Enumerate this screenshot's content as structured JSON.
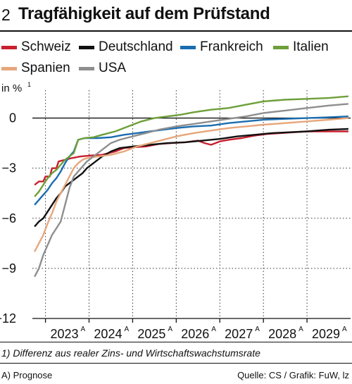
{
  "header": {
    "number": "2",
    "title": "Tragfähigkeit auf dem Prüfstand"
  },
  "chart_data": {
    "type": "line",
    "ylabel": "in %",
    "ylabel_sup": "1",
    "ylim": [
      -12,
      1.5
    ],
    "yticks": [
      0,
      -3,
      -6,
      -9,
      -12
    ],
    "ytick_labels": [
      "0",
      "−3",
      "−6",
      "−9",
      "−12"
    ],
    "xlim": [
      2022.7,
      2030.0
    ],
    "xticks": [
      {
        "label": "2023",
        "sup": "A",
        "pos": 2023.5
      },
      {
        "label": "2024",
        "sup": "A",
        "pos": 2024.5
      },
      {
        "label": "2025",
        "sup": "A",
        "pos": 2025.5
      },
      {
        "label": "2026",
        "sup": "A",
        "pos": 2026.5
      },
      {
        "label": "2027",
        "sup": "A",
        "pos": 2027.5
      },
      {
        "label": "2028",
        "sup": "A",
        "pos": 2028.5
      },
      {
        "label": "2029",
        "sup": "A",
        "pos": 2029.5
      }
    ],
    "year_gridlines": [
      2023,
      2024,
      2025,
      2026,
      2027,
      2028,
      2029
    ],
    "series": [
      {
        "name": "Schweiz",
        "color": "#c8202f",
        "points": [
          [
            2022.75,
            -4.0
          ],
          [
            2022.85,
            -3.8
          ],
          [
            2022.95,
            -3.8
          ],
          [
            2023.0,
            -3.5
          ],
          [
            2023.1,
            -3.5
          ],
          [
            2023.15,
            -3.0
          ],
          [
            2023.25,
            -3.0
          ],
          [
            2023.3,
            -2.6
          ],
          [
            2023.45,
            -2.5
          ],
          [
            2023.6,
            -2.4
          ],
          [
            2023.8,
            -2.3
          ],
          [
            2024.0,
            -2.25
          ],
          [
            2024.3,
            -2.2
          ],
          [
            2024.6,
            -2.0
          ],
          [
            2024.8,
            -1.8
          ],
          [
            2025.0,
            -1.75
          ],
          [
            2025.3,
            -1.7
          ],
          [
            2025.6,
            -1.55
          ],
          [
            2025.9,
            -1.5
          ],
          [
            2026.2,
            -1.45
          ],
          [
            2026.5,
            -1.35
          ],
          [
            2026.65,
            -1.5
          ],
          [
            2026.8,
            -1.6
          ],
          [
            2027.0,
            -1.4
          ],
          [
            2027.2,
            -1.3
          ],
          [
            2027.5,
            -1.2
          ],
          [
            2027.8,
            -1.05
          ],
          [
            2028.1,
            -0.95
          ],
          [
            2028.4,
            -0.9
          ],
          [
            2028.7,
            -0.85
          ],
          [
            2029.0,
            -0.8
          ],
          [
            2029.5,
            -0.8
          ],
          [
            2029.95,
            -0.8
          ]
        ]
      },
      {
        "name": "Deutschland",
        "color": "#111111",
        "points": [
          [
            2022.75,
            -6.5
          ],
          [
            2022.85,
            -6.2
          ],
          [
            2022.95,
            -6.0
          ],
          [
            2023.05,
            -5.6
          ],
          [
            2023.15,
            -5.2
          ],
          [
            2023.25,
            -4.8
          ],
          [
            2023.35,
            -4.5
          ],
          [
            2023.45,
            -4.1
          ],
          [
            2023.55,
            -3.9
          ],
          [
            2023.65,
            -3.7
          ],
          [
            2023.75,
            -3.5
          ],
          [
            2023.85,
            -3.3
          ],
          [
            2023.95,
            -3.0
          ],
          [
            2024.05,
            -2.8
          ],
          [
            2024.15,
            -2.6
          ],
          [
            2024.3,
            -2.3
          ],
          [
            2024.5,
            -2.0
          ],
          [
            2024.7,
            -1.8
          ],
          [
            2025.0,
            -1.7
          ],
          [
            2025.4,
            -1.6
          ],
          [
            2025.8,
            -1.5
          ],
          [
            2026.2,
            -1.45
          ],
          [
            2026.6,
            -1.35
          ],
          [
            2027.0,
            -1.25
          ],
          [
            2027.4,
            -1.1
          ],
          [
            2027.8,
            -1.0
          ],
          [
            2028.2,
            -0.9
          ],
          [
            2028.6,
            -0.85
          ],
          [
            2029.0,
            -0.8
          ],
          [
            2029.5,
            -0.7
          ],
          [
            2029.95,
            -0.65
          ]
        ]
      },
      {
        "name": "Frankreich",
        "color": "#1a6db0",
        "points": [
          [
            2022.75,
            -5.2
          ],
          [
            2022.85,
            -4.9
          ],
          [
            2022.95,
            -4.6
          ],
          [
            2023.05,
            -4.3
          ],
          [
            2023.15,
            -3.9
          ],
          [
            2023.25,
            -3.6
          ],
          [
            2023.35,
            -3.2
          ],
          [
            2023.45,
            -2.7
          ],
          [
            2023.55,
            -2.3
          ],
          [
            2023.65,
            -2.0
          ],
          [
            2023.75,
            -1.3
          ],
          [
            2023.9,
            -1.2
          ],
          [
            2024.2,
            -1.2
          ],
          [
            2024.5,
            -1.15
          ],
          [
            2024.8,
            -1.0
          ],
          [
            2025.1,
            -0.9
          ],
          [
            2025.4,
            -0.8
          ],
          [
            2025.7,
            -0.7
          ],
          [
            2026.0,
            -0.6
          ],
          [
            2026.4,
            -0.5
          ],
          [
            2026.8,
            -0.45
          ],
          [
            2027.2,
            -0.3
          ],
          [
            2027.6,
            -0.2
          ],
          [
            2028.0,
            -0.1
          ],
          [
            2028.5,
            -0.05
          ],
          [
            2029.0,
            0.0
          ],
          [
            2029.5,
            0.05
          ],
          [
            2029.95,
            0.1
          ]
        ]
      },
      {
        "name": "Italien",
        "color": "#6e9f3a",
        "points": [
          [
            2022.75,
            -4.7
          ],
          [
            2022.85,
            -4.4
          ],
          [
            2022.95,
            -4.0
          ],
          [
            2023.05,
            -3.6
          ],
          [
            2023.15,
            -3.3
          ],
          [
            2023.25,
            -3.1
          ],
          [
            2023.35,
            -2.8
          ],
          [
            2023.45,
            -2.5
          ],
          [
            2023.55,
            -2.3
          ],
          [
            2023.65,
            -2.1
          ],
          [
            2023.75,
            -1.3
          ],
          [
            2023.9,
            -1.2
          ],
          [
            2024.1,
            -1.15
          ],
          [
            2024.3,
            -1.0
          ],
          [
            2024.6,
            -0.8
          ],
          [
            2024.9,
            -0.5
          ],
          [
            2025.2,
            -0.2
          ],
          [
            2025.5,
            0.0
          ],
          [
            2025.8,
            0.1
          ],
          [
            2026.1,
            0.2
          ],
          [
            2026.4,
            0.35
          ],
          [
            2026.8,
            0.5
          ],
          [
            2027.2,
            0.6
          ],
          [
            2027.6,
            0.8
          ],
          [
            2028.0,
            1.0
          ],
          [
            2028.5,
            1.1
          ],
          [
            2029.0,
            1.15
          ],
          [
            2029.5,
            1.2
          ],
          [
            2029.95,
            1.3
          ]
        ]
      },
      {
        "name": "Spanien",
        "color": "#e6a77b",
        "points": [
          [
            2022.75,
            -8.0
          ],
          [
            2022.85,
            -7.5
          ],
          [
            2022.95,
            -7.0
          ],
          [
            2023.05,
            -6.3
          ],
          [
            2023.15,
            -5.7
          ],
          [
            2023.25,
            -5.0
          ],
          [
            2023.35,
            -4.5
          ],
          [
            2023.45,
            -4.0
          ],
          [
            2023.55,
            -3.5
          ],
          [
            2023.65,
            -3.0
          ],
          [
            2023.75,
            -2.7
          ],
          [
            2023.85,
            -2.5
          ],
          [
            2023.95,
            -2.4
          ],
          [
            2024.2,
            -2.3
          ],
          [
            2024.5,
            -2.2
          ],
          [
            2024.8,
            -2.0
          ],
          [
            2025.1,
            -1.7
          ],
          [
            2025.4,
            -1.5
          ],
          [
            2025.7,
            -1.3
          ],
          [
            2026.0,
            -1.1
          ],
          [
            2026.4,
            -0.9
          ],
          [
            2026.8,
            -0.75
          ],
          [
            2027.2,
            -0.6
          ],
          [
            2027.6,
            -0.5
          ],
          [
            2028.0,
            -0.4
          ],
          [
            2028.5,
            -0.3
          ],
          [
            2029.0,
            -0.2
          ],
          [
            2029.5,
            -0.1
          ],
          [
            2029.95,
            0.0
          ]
        ]
      },
      {
        "name": "USA",
        "color": "#8e8e8e",
        "points": [
          [
            2022.75,
            -9.5
          ],
          [
            2022.85,
            -9.0
          ],
          [
            2022.95,
            -8.2
          ],
          [
            2023.05,
            -7.6
          ],
          [
            2023.15,
            -7.0
          ],
          [
            2023.25,
            -6.6
          ],
          [
            2023.35,
            -6.2
          ],
          [
            2023.45,
            -5.2
          ],
          [
            2023.55,
            -4.2
          ],
          [
            2023.65,
            -3.5
          ],
          [
            2023.75,
            -3.2
          ],
          [
            2023.85,
            -2.9
          ],
          [
            2023.95,
            -2.6
          ],
          [
            2024.1,
            -2.3
          ],
          [
            2024.3,
            -1.9
          ],
          [
            2024.5,
            -1.5
          ],
          [
            2024.7,
            -1.3
          ],
          [
            2025.0,
            -1.1
          ],
          [
            2025.3,
            -0.9
          ],
          [
            2025.6,
            -0.7
          ],
          [
            2026.0,
            -0.5
          ],
          [
            2026.4,
            -0.35
          ],
          [
            2026.8,
            -0.2
          ],
          [
            2027.2,
            -0.05
          ],
          [
            2027.6,
            0.1
          ],
          [
            2028.0,
            0.3
          ],
          [
            2028.5,
            0.45
          ],
          [
            2029.0,
            0.6
          ],
          [
            2029.5,
            0.75
          ],
          [
            2029.95,
            0.85
          ]
        ]
      }
    ]
  },
  "legend": [
    {
      "name": "Schweiz",
      "color": "#c8202f"
    },
    {
      "name": "Deutschland",
      "color": "#111111"
    },
    {
      "name": "Frankreich",
      "color": "#1a6db0"
    },
    {
      "name": "Italien",
      "color": "#6e9f3a"
    },
    {
      "name": "Spanien",
      "color": "#e6a77b"
    },
    {
      "name": "USA",
      "color": "#8e8e8e"
    }
  ],
  "footnote": "1) Differenz aus realer Zins- und Wirtschaftswachstumsrate",
  "note": "A) Prognose",
  "source": "Quelle: CS / Grafik: FuW, lz"
}
